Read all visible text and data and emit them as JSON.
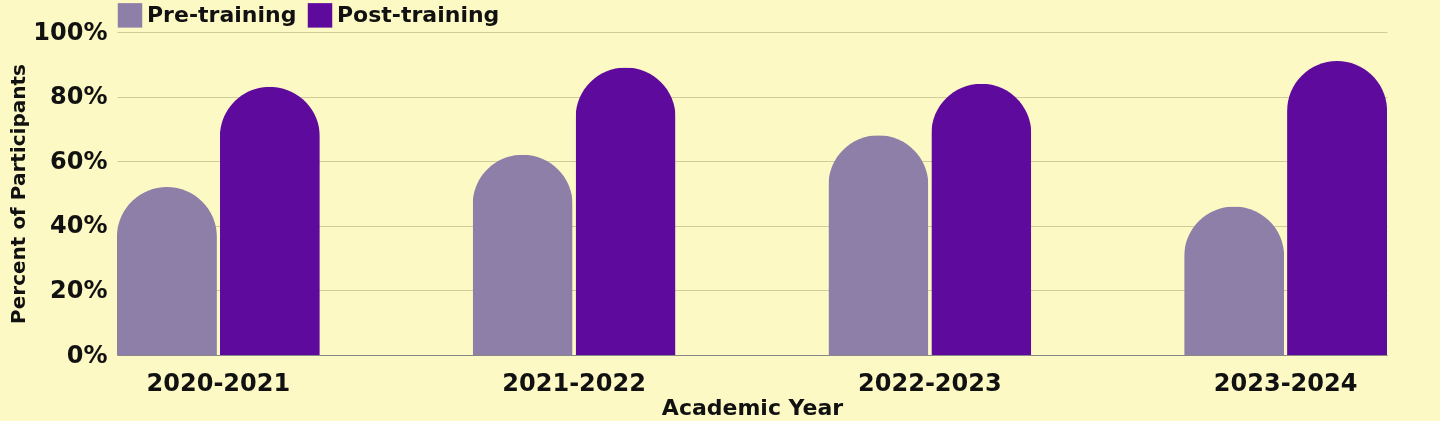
{
  "chart_data": {
    "type": "bar",
    "xlabel": "Academic Year",
    "ylabel": "Percent of Participants",
    "categories": [
      "2020-2021",
      "2021-2022",
      "2022-2023",
      "2023-2024"
    ],
    "series": [
      {
        "name": "Pre-training",
        "color": "#8e7fa8",
        "values": [
          52,
          62,
          68,
          46
        ]
      },
      {
        "name": "Post-training",
        "color": "#5e0a9c",
        "values": [
          83,
          89,
          84,
          91
        ]
      }
    ],
    "ylim": [
      0,
      100
    ],
    "yticks": [
      {
        "value": 0,
        "label": "0%"
      },
      {
        "value": 20,
        "label": "20%"
      },
      {
        "value": 40,
        "label": "40%"
      },
      {
        "value": 60,
        "label": "60%"
      },
      {
        "value": 80,
        "label": "80%"
      },
      {
        "value": 100,
        "label": "100%"
      }
    ],
    "grid": "y",
    "legend": "top"
  }
}
